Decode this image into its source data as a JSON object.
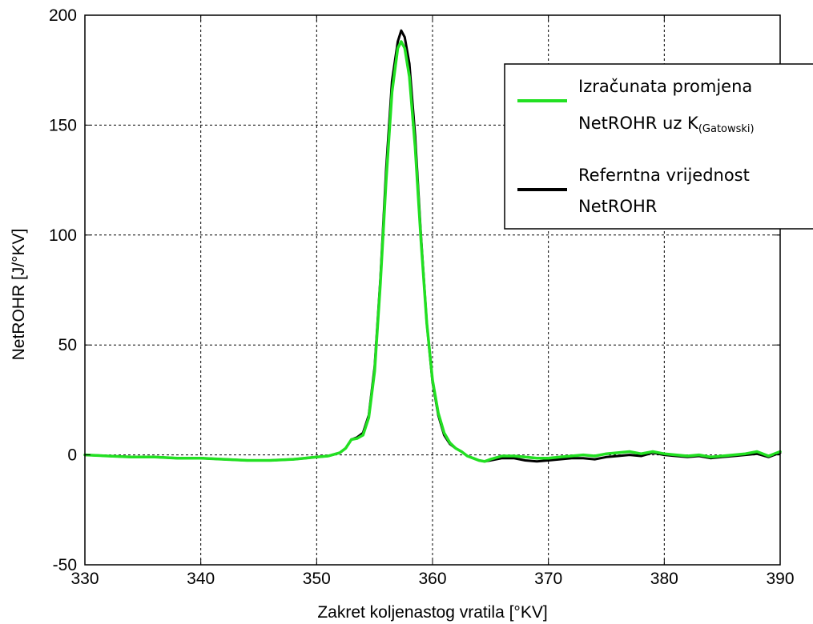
{
  "chart_data": {
    "type": "line",
    "xlabel": "Zakret koljenastog vratila [°KV]",
    "ylabel": "NetROHR [J/°KV]",
    "xlim": [
      330,
      390
    ],
    "ylim": [
      -50,
      200
    ],
    "xticks": [
      330,
      340,
      350,
      360,
      370,
      380,
      390
    ],
    "yticks": [
      -50,
      0,
      50,
      100,
      150,
      200
    ],
    "grid": true,
    "legend_position": "top-right",
    "legend": [
      {
        "line1": "Izračunata promjena",
        "line2": "NetROHR uz K",
        "line2_sub": "(Gatowski)",
        "color": "#22e022"
      },
      {
        "line1": "Referntna vrijednost",
        "line2": "NetROHR",
        "line2_sub": "",
        "color": "#000000"
      }
    ],
    "series": [
      {
        "color": "#000000",
        "x": [
          330,
          332,
          334,
          336,
          338,
          340,
          342,
          344,
          346,
          348,
          350,
          351,
          352,
          352.5,
          353,
          353.5,
          354,
          354.5,
          355,
          355.5,
          356,
          356.5,
          357,
          357.3,
          357.6,
          358,
          358.5,
          359,
          359.5,
          360,
          360.5,
          361,
          361.5,
          362,
          362.5,
          363,
          363.5,
          364,
          364.5,
          365,
          366,
          367,
          368,
          369,
          370,
          371,
          372,
          373,
          374,
          375,
          376,
          377,
          378,
          379,
          380,
          381,
          382,
          383,
          384,
          385,
          386,
          387,
          388,
          389,
          390
        ],
        "y": [
          0,
          -0.5,
          -1,
          -1,
          -1.5,
          -1.5,
          -2,
          -2.5,
          -2.5,
          -2,
          -1,
          -0.5,
          1,
          3,
          7,
          8,
          10,
          18,
          40,
          80,
          130,
          170,
          188,
          193,
          190,
          178,
          145,
          100,
          60,
          33,
          18,
          9,
          5,
          3,
          1.5,
          -0.5,
          -1.5,
          -2.5,
          -3,
          -2.5,
          -1.5,
          -1.5,
          -2.5,
          -3,
          -2.5,
          -2,
          -1.5,
          -1.5,
          -2,
          -1,
          -0.5,
          0,
          -0.5,
          1,
          0,
          -0.5,
          -1,
          -0.5,
          -1.5,
          -1,
          -0.5,
          0,
          0.5,
          -1,
          1
        ]
      },
      {
        "color": "#22e022",
        "x": [
          330,
          332,
          334,
          336,
          338,
          340,
          342,
          344,
          346,
          348,
          350,
          351,
          352,
          352.5,
          353,
          353.5,
          354,
          354.5,
          355,
          355.5,
          356,
          356.5,
          357,
          357.3,
          357.6,
          358,
          358.5,
          359,
          359.5,
          360,
          360.5,
          361,
          361.5,
          362,
          362.5,
          363,
          363.5,
          364,
          364.5,
          365,
          366,
          367,
          368,
          369,
          370,
          371,
          372,
          373,
          374,
          375,
          376,
          377,
          378,
          379,
          380,
          381,
          382,
          383,
          384,
          385,
          386,
          387,
          388,
          389,
          390
        ],
        "y": [
          0,
          -0.5,
          -1,
          -1,
          -1.5,
          -1.5,
          -2,
          -2.5,
          -2.5,
          -2,
          -1,
          -0.5,
          1,
          3,
          7,
          7.5,
          9,
          17,
          38,
          78,
          125,
          165,
          185,
          188,
          185,
          172,
          140,
          98,
          60,
          34,
          19,
          10,
          5.5,
          3,
          1.5,
          -0.5,
          -1.5,
          -2.5,
          -3,
          -2,
          -0.5,
          -0.5,
          -1,
          -1.5,
          -1.5,
          -1,
          -0.5,
          0,
          -0.5,
          0.5,
          1,
          1.5,
          0.5,
          1.5,
          0.5,
          0,
          -0.5,
          0,
          -1,
          -0.5,
          0,
          0.5,
          1.5,
          -0.5,
          1.5
        ]
      }
    ]
  }
}
